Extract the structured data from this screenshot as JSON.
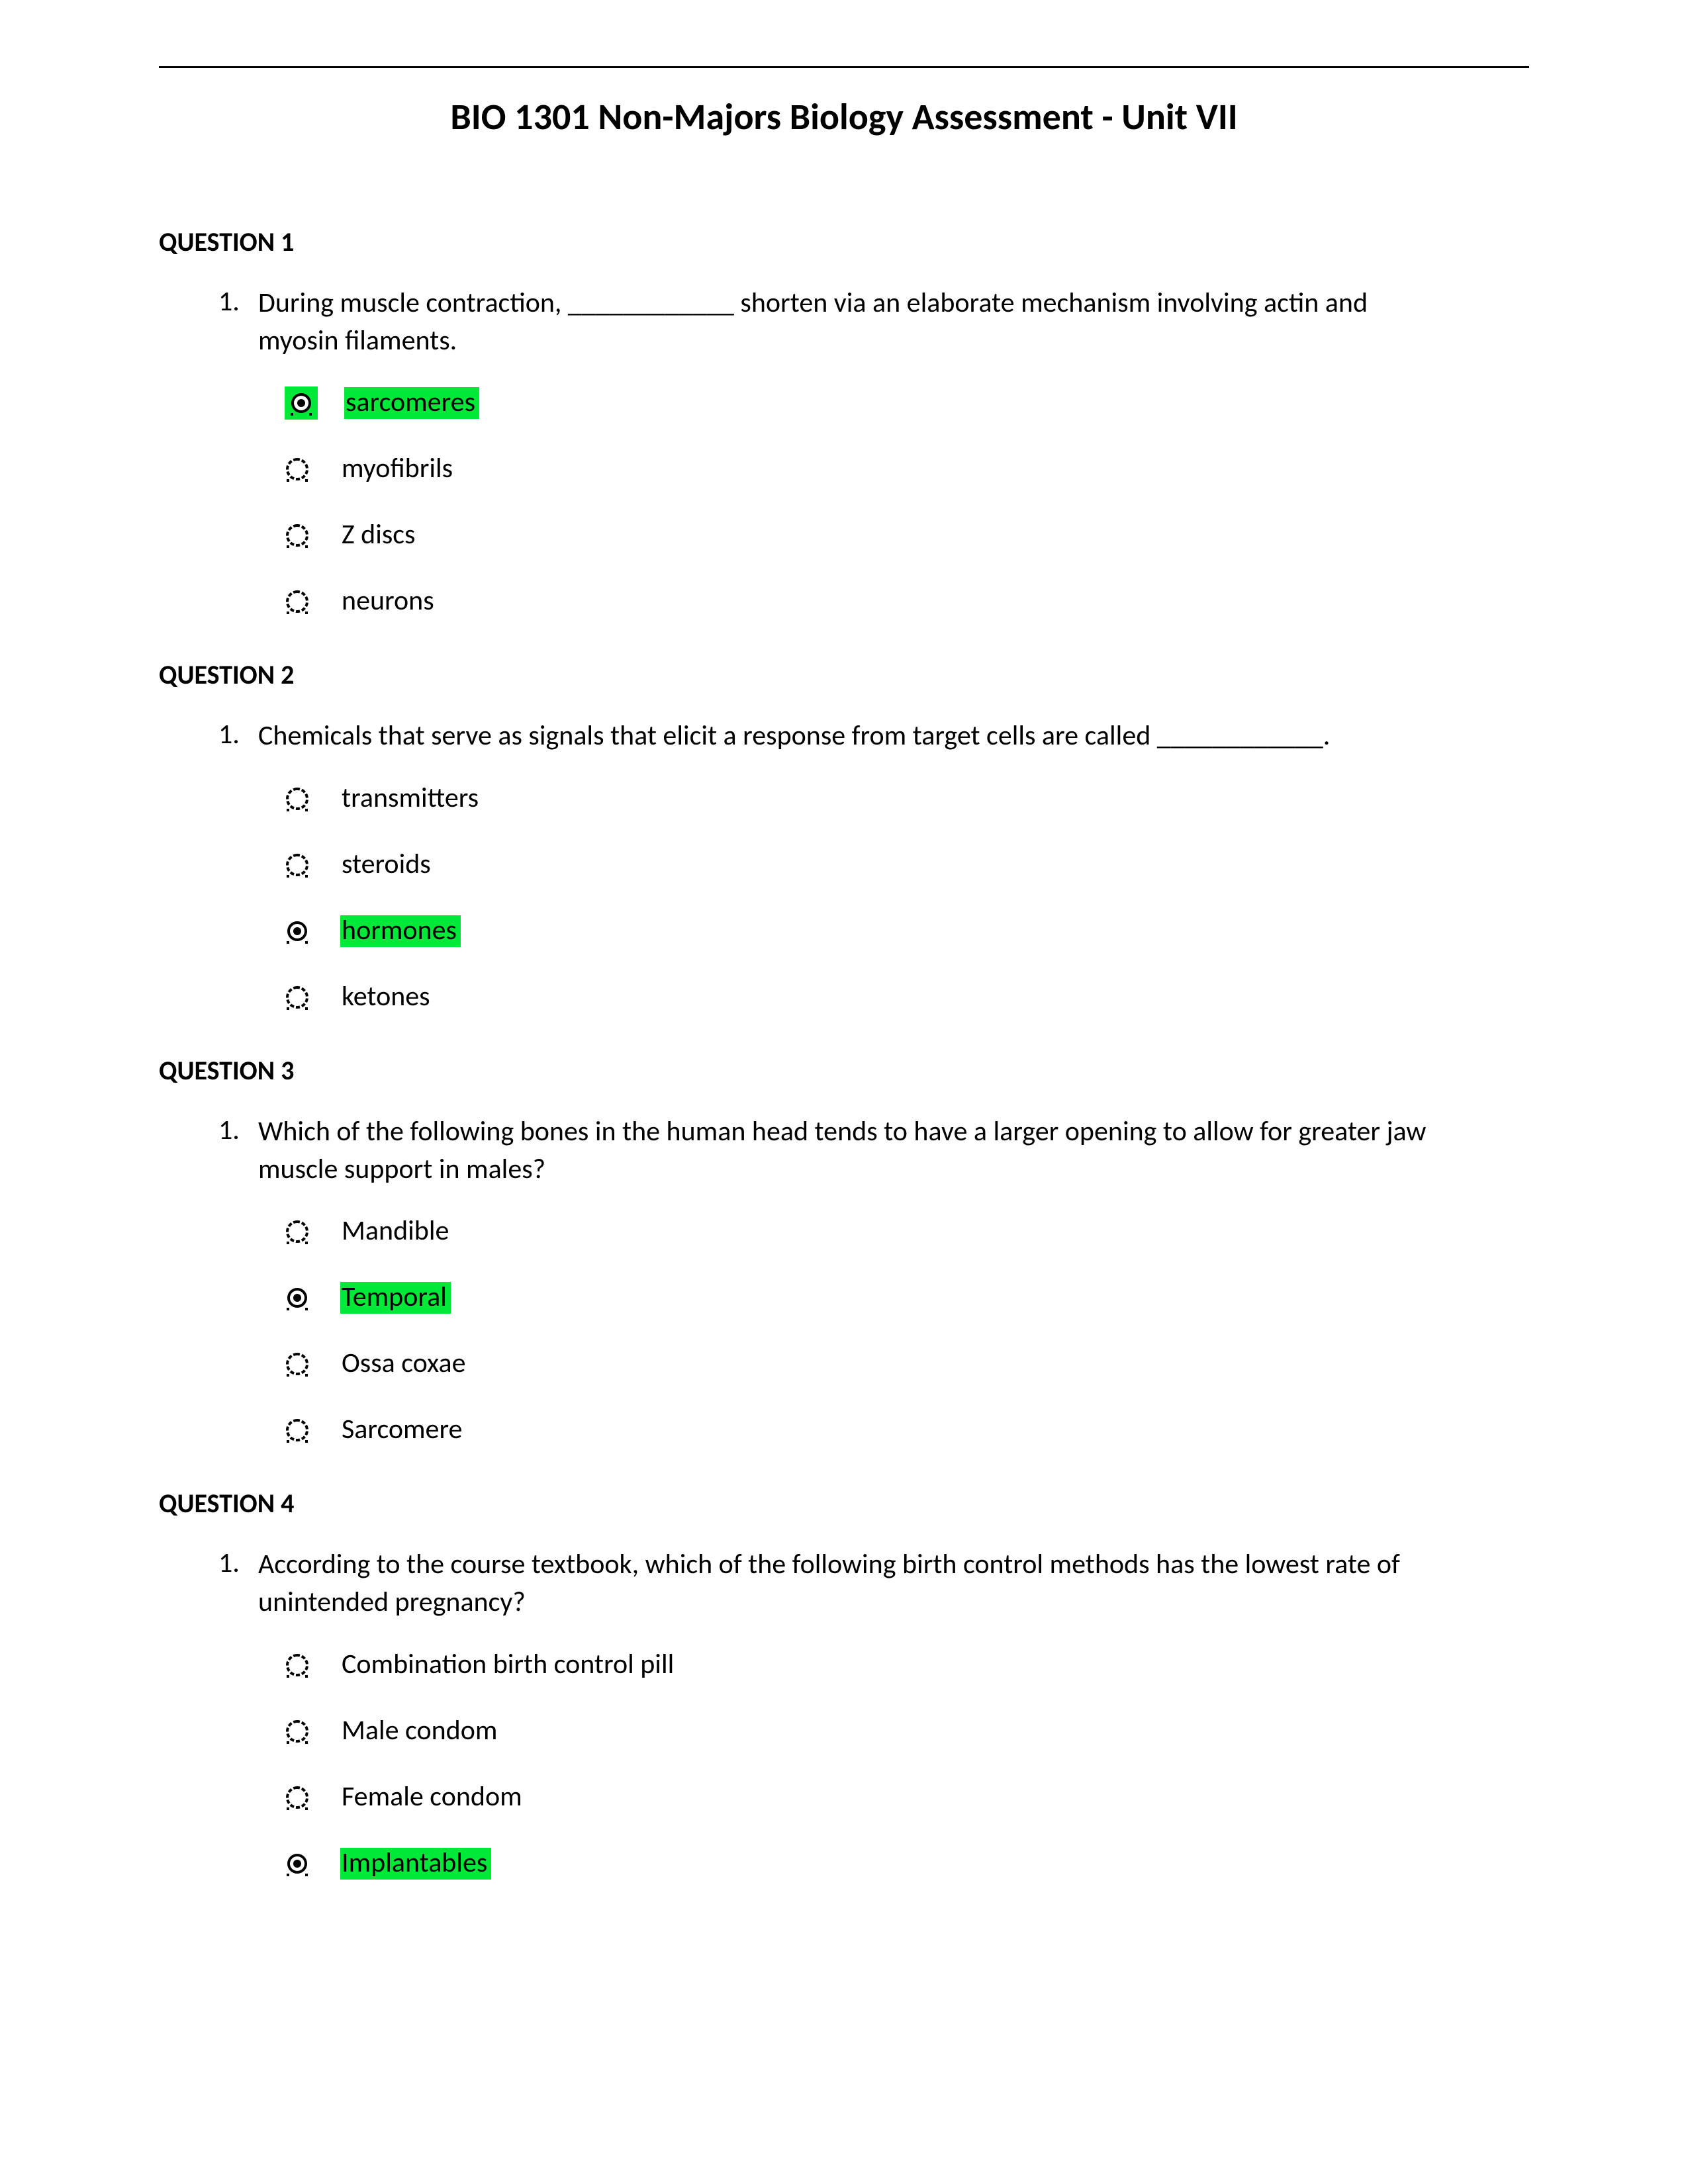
{
  "title": "BIO 1301 Non-Majors Biology Assessment - Unit VII",
  "highlight_color": "#00e838",
  "text_color": "#000000",
  "background_color": "#ffffff",
  "font_family": "Calibri",
  "title_fontsize": 56,
  "heading_fontsize": 40,
  "body_fontsize": 42,
  "questions": [
    {
      "heading": "QUESTION 1",
      "number": "1.",
      "prompt": "During muscle contraction, ____________ shorten via an elaborate mechanism involving actin and myosin filaments.",
      "options": [
        {
          "label": "sarcomeres",
          "selected": true,
          "highlighted": true,
          "radio_highlighted": true
        },
        {
          "label": "myofibrils",
          "selected": false,
          "highlighted": false,
          "radio_highlighted": false
        },
        {
          "label": "Z discs",
          "selected": false,
          "highlighted": false,
          "radio_highlighted": false
        },
        {
          "label": "neurons",
          "selected": false,
          "highlighted": false,
          "radio_highlighted": false
        }
      ]
    },
    {
      "heading": "QUESTION 2",
      "number": "1.",
      "prompt": "Chemicals that serve as signals that elicit a response from target cells are called ____________.",
      "options": [
        {
          "label": "transmitters",
          "selected": false,
          "highlighted": false,
          "radio_highlighted": false
        },
        {
          "label": "steroids",
          "selected": false,
          "highlighted": false,
          "radio_highlighted": false
        },
        {
          "label": "hormones",
          "selected": true,
          "highlighted": true,
          "radio_highlighted": false
        },
        {
          "label": "ketones",
          "selected": false,
          "highlighted": false,
          "radio_highlighted": false
        }
      ]
    },
    {
      "heading": "QUESTION 3",
      "number": "1.",
      "prompt": "Which of the following bones in the human head tends to have a larger opening to allow for greater jaw muscle support in males?",
      "options": [
        {
          "label": "Mandible",
          "selected": false,
          "highlighted": false,
          "radio_highlighted": false
        },
        {
          "label": "Temporal",
          "selected": true,
          "highlighted": true,
          "radio_highlighted": false
        },
        {
          "label": "Ossa coxae",
          "selected": false,
          "highlighted": false,
          "radio_highlighted": false
        },
        {
          "label": "Sarcomere",
          "selected": false,
          "highlighted": false,
          "radio_highlighted": false
        }
      ]
    },
    {
      "heading": "QUESTION 4",
      "number": "1.",
      "prompt": "According to the course textbook, which of the following birth control methods has the lowest rate of unintended pregnancy?",
      "options": [
        {
          "label": "Combination birth control pill",
          "selected": false,
          "highlighted": false,
          "radio_highlighted": false
        },
        {
          "label": "Male condom",
          "selected": false,
          "highlighted": false,
          "radio_highlighted": false
        },
        {
          "label": "Female condom",
          "selected": false,
          "highlighted": false,
          "radio_highlighted": false
        },
        {
          "label": "Implantables",
          "selected": true,
          "highlighted": true,
          "radio_highlighted": false
        }
      ]
    }
  ]
}
